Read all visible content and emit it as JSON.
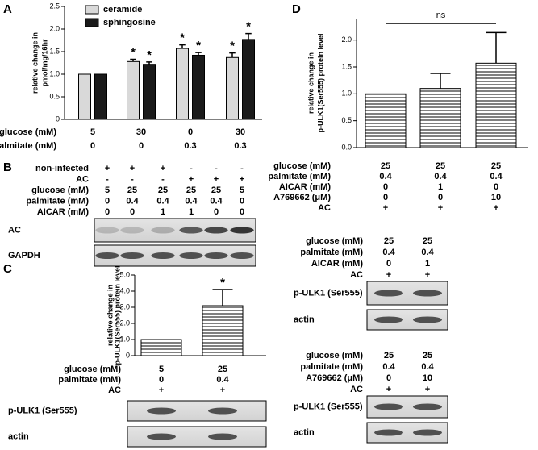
{
  "chart_data": [
    {
      "type": "bar",
      "y_label": [
        "relative change in",
        "pmol/mg/16hr"
      ],
      "categories": [
        null,
        null,
        null,
        null
      ],
      "series": [
        {
          "name": "ceramide",
          "color": "#d9d9d9",
          "values": [
            1,
            1.28,
            1.57,
            1.37
          ],
          "errors": [
            0,
            0.05,
            0.08,
            0.1
          ],
          "marks": [
            null,
            "*",
            "*",
            "*"
          ]
        },
        {
          "name": "sphingosine",
          "color": "#1a1a1a",
          "values": [
            1,
            1.22,
            1.42,
            1.77
          ],
          "errors": [
            0,
            0.05,
            0.06,
            0.13
          ],
          "marks": [
            null,
            "*",
            "*",
            "*"
          ]
        }
      ],
      "ylim": [
        0,
        2.5
      ],
      "yticks": [
        0,
        0.5,
        {
          "value": 1,
          "label": "1.0"
        },
        {
          "value": 1.5,
          "label": "1.5"
        },
        {
          "value": 2,
          "label": "2.0"
        },
        {
          "value": 2.5,
          "label": "2.5"
        }
      ],
      "legend": "top-left",
      "conditions": [
        {
          "label": "glucose (mM)",
          "values": [
            "5",
            "30",
            "0",
            "30"
          ]
        },
        {
          "label": "palmitate (mM)",
          "values": [
            "0",
            "0",
            "0.3",
            "0.3"
          ]
        }
      ]
    },
    {
      "type": "bar",
      "y_label": [
        "relative change in",
        "p-ULK1(Ser555) protein level"
      ],
      "categories": [
        null,
        null
      ],
      "series": [
        {
          "color": "#000000",
          "hatch": true,
          "values": [
            1,
            3.1
          ],
          "errors": [
            0,
            1.0
          ],
          "marks": [
            null,
            "*"
          ]
        }
      ],
      "ylim": [
        0,
        5
      ],
      "yticks": [
        0,
        {
          "value": 1,
          "label": "1.0"
        },
        {
          "value": 2,
          "label": "2.0"
        },
        {
          "value": 3,
          "label": "3.0"
        },
        {
          "value": 4,
          "label": "4.0"
        },
        {
          "value": 5,
          "label": "5.0"
        }
      ],
      "conditions": [
        {
          "label": "glucose (mM)",
          "values": [
            "5",
            "25"
          ]
        },
        {
          "label": "palmitate (mM)",
          "values": [
            "0",
            "0.4"
          ]
        },
        {
          "label": "AC",
          "values": [
            "+",
            "+"
          ]
        }
      ]
    },
    {
      "type": "bar",
      "y_label": [
        "relative change in",
        "p-ULK1(Ser555) protein level"
      ],
      "categories": [
        null,
        null,
        null
      ],
      "series": [
        {
          "color": "#000000",
          "hatch": true,
          "values": [
            1,
            1.1,
            1.57
          ],
          "errors": [
            0,
            0.28,
            0.57
          ]
        }
      ],
      "ylim": [
        0,
        2.4
      ],
      "yticks": [
        {
          "value": 0,
          "label": "0.0"
        },
        {
          "value": 0.5,
          "label": "0.5"
        },
        {
          "value": 1,
          "label": "1.0"
        },
        {
          "value": 1.5,
          "label": "1.5"
        },
        {
          "value": 2,
          "label": "2.0"
        }
      ],
      "annotation": "ns",
      "conditions": [
        {
          "label": "glucose (mM)",
          "values": [
            "25",
            "25",
            "25"
          ]
        },
        {
          "label": "palmitate (mM)",
          "values": [
            "0.4",
            "0.4",
            "0.4"
          ]
        },
        {
          "label": "AICAR (mM)",
          "values": [
            "0",
            "1",
            "0"
          ]
        },
        {
          "label": "A769662 (μM)",
          "values": [
            "0",
            "0",
            "10"
          ]
        },
        {
          "label": "AC",
          "values": [
            "+",
            "+",
            "+"
          ]
        }
      ]
    }
  ],
  "panel_labels": [
    "A",
    "B",
    "C",
    "D"
  ],
  "blots": [
    {
      "conditions": [
        {
          "label": "non-infected",
          "values": [
            "+",
            "+",
            "+",
            "-",
            "-",
            "-"
          ]
        },
        {
          "label": "AC",
          "values": [
            "-",
            "-",
            "-",
            "+",
            "+",
            "+"
          ]
        },
        {
          "label": "glucose (mM)",
          "values": [
            "5",
            "25",
            "25",
            "25",
            "25",
            "5"
          ]
        },
        {
          "label": "palmitate (mM)",
          "values": [
            "0",
            "0.4",
            "0.4",
            "0.4",
            "0.4",
            "0"
          ]
        },
        {
          "label": "AICAR (mM)",
          "values": [
            "0",
            "0",
            "1",
            "1",
            "0",
            "0"
          ]
        }
      ],
      "bands": [
        "AC",
        "GAPDH"
      ]
    },
    {
      "conditions": [],
      "bands": [
        "p-ULK1 (Ser555)",
        "actin"
      ]
    },
    {
      "conditions": [
        {
          "label": "glucose (mM)",
          "values": [
            "25",
            "25"
          ]
        },
        {
          "label": "palmitate (mM)",
          "values": [
            "0.4",
            "0.4"
          ]
        },
        {
          "label": "AICAR (mM)",
          "values": [
            "0",
            "1"
          ]
        },
        {
          "label": "AC",
          "values": [
            "+",
            "+"
          ]
        }
      ],
      "bands": [
        "p-ULK1 (Ser555)",
        "actin"
      ]
    },
    {
      "conditions": [
        {
          "label": "glucose (mM)",
          "values": [
            "25",
            "25"
          ]
        },
        {
          "label": "palmitate (mM)",
          "values": [
            "0.4",
            "0.4"
          ]
        },
        {
          "label": "A769662 (μM)",
          "values": [
            "0",
            "10"
          ]
        },
        {
          "label": "AC",
          "values": [
            "+",
            "+"
          ]
        }
      ],
      "bands": [
        "p-ULK1 (Ser555)",
        "actin"
      ]
    }
  ]
}
